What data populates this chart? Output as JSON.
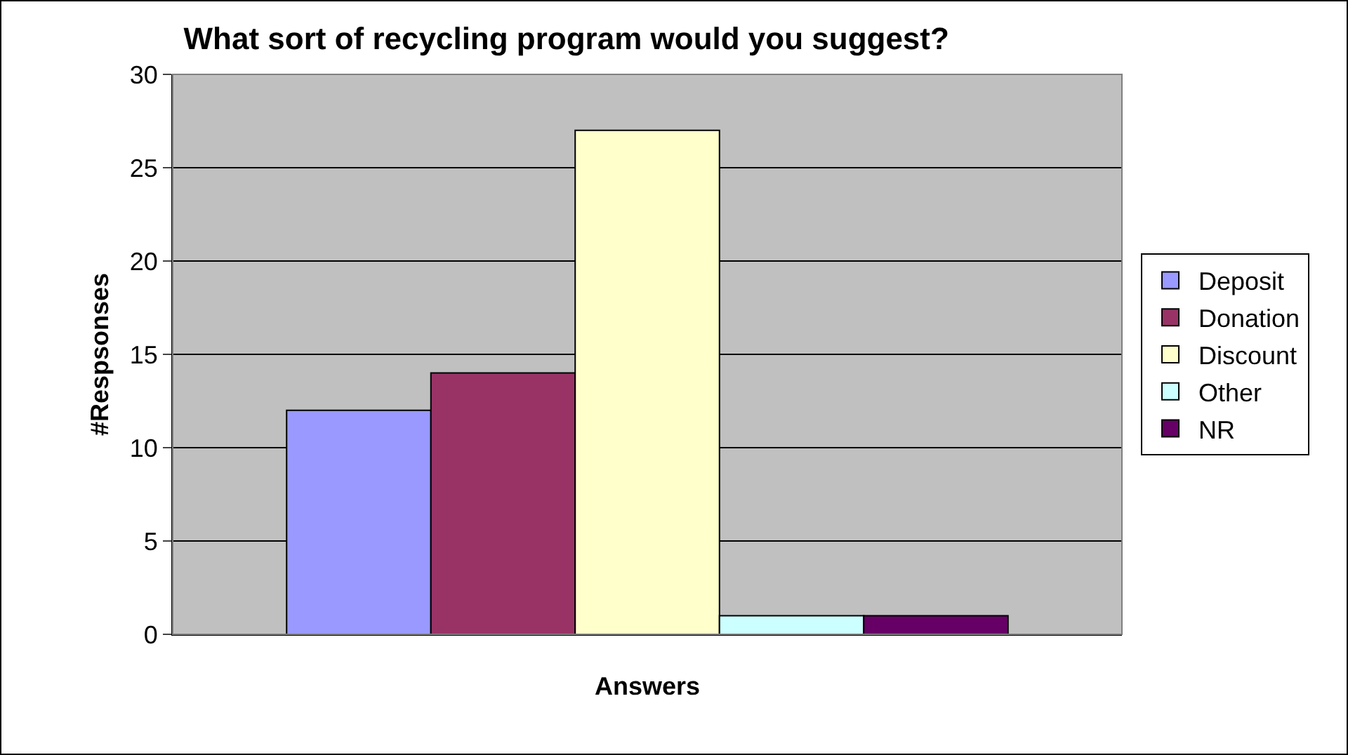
{
  "chart_data": {
    "type": "bar",
    "title": "What sort of recycling program would you suggest?",
    "xlabel": "Answers",
    "ylabel": "#Respsonses",
    "categories": [
      null
    ],
    "series": [
      {
        "name": "Deposit",
        "color": "#9999ff",
        "values": [
          12
        ]
      },
      {
        "name": "Donation",
        "color": "#993366",
        "values": [
          14
        ]
      },
      {
        "name": "Discount",
        "color": "#ffffcc",
        "values": [
          27
        ]
      },
      {
        "name": "Other",
        "color": "#ccffff",
        "values": [
          1
        ]
      },
      {
        "name": "NR",
        "color": "#660066",
        "values": [
          1
        ]
      }
    ],
    "ylim": [
      0,
      30
    ],
    "yticks": [
      0,
      5,
      10,
      15,
      20,
      25,
      30
    ],
    "grid": "y",
    "legend": "right"
  }
}
